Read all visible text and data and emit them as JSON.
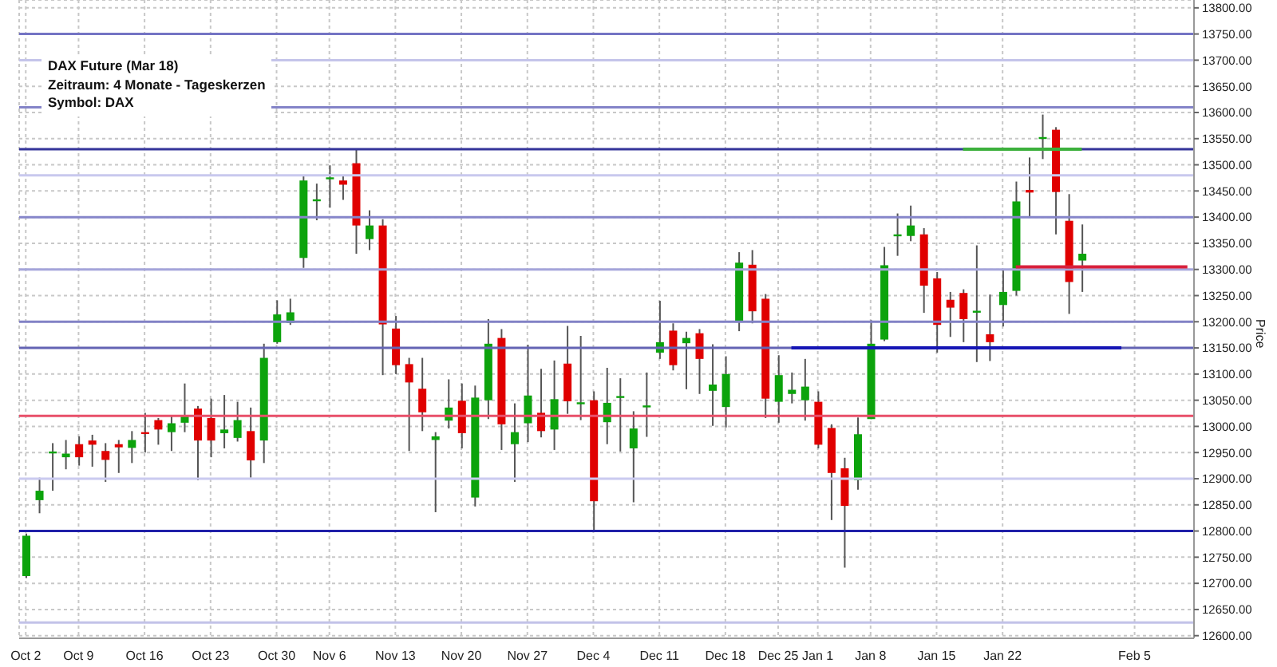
{
  "chart_data": {
    "type": "candlestick",
    "annotations": [
      "DAX Future (Mar 18)",
      "Zeitraum: 4 Monate - Tageskerzen",
      "Symbol: DAX"
    ],
    "ylabel": "Price",
    "categories": [
      "Oct 2",
      null,
      null,
      null,
      "Oct 9",
      null,
      null,
      null,
      null,
      "Oct 16",
      null,
      null,
      null,
      null,
      "Oct 23",
      null,
      null,
      null,
      null,
      "Oct 30",
      null,
      null,
      null,
      "Nov 6",
      null,
      null,
      null,
      null,
      "Nov 13",
      null,
      null,
      null,
      null,
      "Nov 20",
      null,
      null,
      null,
      null,
      "Nov 27",
      null,
      null,
      null,
      null,
      "Dec 4",
      null,
      null,
      null,
      null,
      "Dec 11",
      null,
      null,
      null,
      null,
      "Dec 18",
      null,
      null,
      null,
      "Dec 25",
      null,
      null,
      "Jan 1",
      null,
      null,
      null,
      "Jan 8",
      null,
      null,
      null,
      null,
      "Jan 15",
      null,
      null,
      null,
      null,
      "Jan 22",
      null,
      null,
      null,
      null,
      null,
      null,
      null,
      null,
      null,
      "Feb 5",
      null,
      null,
      null,
      null
    ],
    "ohlc": [
      [
        12714,
        12795,
        12710,
        12791
      ],
      [
        12859,
        12902,
        12834,
        12877
      ],
      [
        12950,
        12968,
        12877,
        12952
      ],
      [
        12941,
        12974,
        12918,
        12948
      ],
      [
        12966,
        12981,
        12925,
        12941
      ],
      [
        12973,
        12984,
        12923,
        12965
      ],
      [
        12953,
        12968,
        12894,
        12936
      ],
      [
        12966,
        12974,
        12911,
        12960
      ],
      [
        12959,
        12991,
        12930,
        12974
      ],
      [
        12989,
        13026,
        12950,
        12986
      ],
      [
        13012,
        13016,
        12965,
        12994
      ],
      [
        12989,
        13019,
        12953,
        13006
      ],
      [
        13007,
        13082,
        12989,
        13022
      ],
      [
        13034,
        13039,
        12897,
        12973
      ],
      [
        13016,
        13053,
        12941,
        12973
      ],
      [
        12987,
        13060,
        12958,
        12994
      ],
      [
        12978,
        13047,
        12971,
        13012
      ],
      [
        12991,
        13036,
        12902,
        12935
      ],
      [
        12973,
        13158,
        12930,
        13131
      ],
      [
        13161,
        13241,
        13158,
        13214
      ],
      [
        13198,
        13244,
        13194,
        13218
      ],
      [
        13322,
        13481,
        13303,
        13470
      ],
      [
        13432,
        13464,
        13394,
        13434
      ],
      [
        13474,
        13499,
        13418,
        13476
      ],
      [
        13470,
        13478,
        13433,
        13462
      ],
      [
        13503,
        13529,
        13330,
        13384
      ],
      [
        13358,
        13413,
        13337,
        13384
      ],
      [
        13384,
        13396,
        13098,
        13195
      ],
      [
        13187,
        13211,
        13100,
        13117
      ],
      [
        13119,
        13131,
        12953,
        13084
      ],
      [
        13072,
        13131,
        12991,
        13027
      ],
      [
        12974,
        12989,
        12836,
        12981
      ],
      [
        13011,
        13090,
        12996,
        13036
      ],
      [
        13049,
        13082,
        12958,
        12987
      ],
      [
        12864,
        13078,
        12847,
        13055
      ],
      [
        13050,
        13205,
        13014,
        13158
      ],
      [
        13169,
        13186,
        12955,
        13004
      ],
      [
        12966,
        13044,
        12894,
        12989
      ],
      [
        13006,
        13156,
        12970,
        13059
      ],
      [
        13026,
        13110,
        12979,
        12991
      ],
      [
        12994,
        13126,
        12955,
        13052
      ],
      [
        13120,
        13192,
        13024,
        13048
      ],
      [
        13044,
        13173,
        13012,
        13046
      ],
      [
        13050,
        13067,
        12801,
        12857
      ],
      [
        13008,
        13112,
        12966,
        13045
      ],
      [
        13056,
        13092,
        12952,
        13058
      ],
      [
        12958,
        13029,
        12855,
        12996
      ],
      [
        13038,
        13103,
        12980,
        13040
      ],
      [
        13141,
        13240,
        13129,
        13161
      ],
      [
        13183,
        13197,
        13107,
        13117
      ],
      [
        13159,
        13181,
        13071,
        13169
      ],
      [
        13178,
        13186,
        13062,
        13129
      ],
      [
        13068,
        13157,
        13001,
        13080
      ],
      [
        13037,
        13134,
        12998,
        13100
      ],
      [
        13199,
        13333,
        13182,
        13313
      ],
      [
        13309,
        13337,
        13197,
        13220
      ],
      [
        13244,
        13253,
        13016,
        13053
      ],
      [
        13047,
        13136,
        13007,
        13098
      ],
      [
        13062,
        13103,
        13044,
        13070
      ],
      [
        13050,
        13129,
        13011,
        13076
      ],
      [
        13047,
        13067,
        12958,
        12965
      ],
      [
        12997,
        13004,
        12821,
        12911
      ],
      [
        12920,
        12940,
        12730,
        12848
      ],
      [
        12897,
        13017,
        12879,
        12985
      ],
      [
        13014,
        13203,
        13014,
        13158
      ],
      [
        13166,
        13343,
        13163,
        13308
      ],
      [
        13365,
        13407,
        13326,
        13367
      ],
      [
        13364,
        13422,
        13354,
        13384
      ],
      [
        13367,
        13379,
        13217,
        13269
      ],
      [
        13283,
        13295,
        13141,
        13194
      ],
      [
        13242,
        13257,
        13171,
        13227
      ],
      [
        13255,
        13262,
        13161,
        13205
      ],
      [
        13219,
        13346,
        13123,
        13221
      ],
      [
        13176,
        13252,
        13125,
        13161
      ],
      [
        13232,
        13301,
        13191,
        13257
      ],
      [
        13259,
        13468,
        13250,
        13430
      ],
      [
        13452,
        13514,
        13401,
        13447
      ],
      [
        13551,
        13596,
        13511,
        13553
      ],
      [
        13567,
        13572,
        13367,
        13448
      ],
      [
        13393,
        13444,
        13215,
        13276
      ],
      [
        13317,
        13386,
        13257,
        13330
      ],
      null,
      null,
      null,
      null,
      null,
      null,
      null,
      null
    ],
    "colors": [
      "#0ca30c",
      "#0ca30c",
      "#0ca30c",
      "#0ca30c",
      "#e00000",
      "#e00000",
      "#e00000",
      "#e00000",
      "#0ca30c",
      "#e00000",
      "#e00000",
      "#0ca30c",
      "#0ca30c",
      "#e00000",
      "#e00000",
      "#0ca30c",
      "#0ca30c",
      "#e00000",
      "#0ca30c",
      "#0ca30c",
      "#0ca30c",
      "#0ca30c",
      "#0ca30c",
      "#0ca30c",
      "#e00000",
      "#e00000",
      "#0ca30c",
      "#e00000",
      "#e00000",
      "#e00000",
      "#e00000",
      "#0ca30c",
      "#0ca30c",
      "#e00000",
      "#0ca30c",
      "#0ca30c",
      "#e00000",
      "#0ca30c",
      "#0ca30c",
      "#e00000",
      "#0ca30c",
      "#e00000",
      "#0ca30c",
      "#e00000",
      "#0ca30c",
      "#0ca30c",
      "#0ca30c",
      "#0ca30c",
      "#0ca30c",
      "#e00000",
      "#0ca30c",
      "#e00000",
      "#0ca30c",
      "#0ca30c",
      "#0ca30c",
      "#e00000",
      "#e00000",
      "#0ca30c",
      "#0ca30c",
      "#0ca30c",
      "#e00000",
      "#e00000",
      "#e00000",
      "#0ca30c",
      "#0ca30c",
      "#0ca30c",
      "#0ca30c",
      "#0ca30c",
      "#e00000",
      "#e00000",
      "#e00000",
      "#e00000",
      "#0ca30c",
      "#e00000",
      "#0ca30c",
      "#0ca30c",
      "#e00000",
      "#0ca30c",
      "#e00000",
      "#e00000",
      "#0ca30c",
      null,
      null,
      null,
      null,
      null,
      null,
      null,
      null
    ],
    "series": [
      {
        "type": "line",
        "color": "#3cb03c",
        "values": [
          null,
          null,
          null,
          null,
          null,
          null,
          null,
          null,
          null,
          null,
          null,
          null,
          null,
          null,
          null,
          null,
          null,
          null,
          null,
          null,
          null,
          null,
          null,
          null,
          null,
          null,
          null,
          null,
          null,
          null,
          null,
          null,
          null,
          null,
          null,
          null,
          null,
          null,
          null,
          null,
          null,
          null,
          null,
          null,
          null,
          null,
          null,
          null,
          null,
          null,
          null,
          null,
          null,
          null,
          null,
          null,
          null,
          null,
          null,
          null,
          null,
          null,
          null,
          null,
          null,
          null,
          null,
          null,
          null,
          null,
          null,
          13530,
          13530,
          13530,
          13530,
          13530,
          13530,
          13530,
          13530,
          13530,
          13530,
          null,
          null,
          null,
          null,
          null,
          null,
          null,
          null
        ]
      },
      {
        "type": "line",
        "color": "#d8203c",
        "values": [
          null,
          null,
          null,
          null,
          null,
          null,
          null,
          null,
          null,
          null,
          null,
          null,
          null,
          null,
          null,
          null,
          null,
          null,
          null,
          null,
          null,
          null,
          null,
          null,
          null,
          null,
          null,
          null,
          null,
          null,
          null,
          null,
          null,
          null,
          null,
          null,
          null,
          null,
          null,
          null,
          null,
          null,
          null,
          null,
          null,
          null,
          null,
          null,
          null,
          null,
          null,
          null,
          null,
          null,
          null,
          null,
          null,
          null,
          null,
          null,
          null,
          null,
          null,
          null,
          null,
          null,
          null,
          null,
          null,
          null,
          null,
          null,
          null,
          null,
          null,
          13305,
          13305,
          13305,
          13305,
          13305,
          13305,
          13305,
          13305,
          13305,
          13305,
          13305,
          13305,
          13305,
          13305
        ]
      },
      {
        "type": "line",
        "color": "#1515b5",
        "values": [
          null,
          null,
          null,
          null,
          null,
          null,
          null,
          null,
          null,
          null,
          null,
          null,
          null,
          null,
          null,
          null,
          null,
          null,
          null,
          null,
          null,
          null,
          null,
          null,
          null,
          null,
          null,
          null,
          null,
          null,
          null,
          null,
          null,
          null,
          null,
          null,
          null,
          null,
          null,
          null,
          null,
          null,
          null,
          null,
          null,
          null,
          null,
          null,
          null,
          null,
          null,
          null,
          null,
          null,
          null,
          null,
          null,
          null,
          13150,
          13150,
          13150,
          13150,
          13150,
          13150,
          13150,
          13150,
          13150,
          13150,
          13150,
          13150,
          13150,
          13150,
          13150,
          13150,
          13150,
          13150,
          13150,
          13150,
          13150,
          13150,
          13150,
          13150,
          13150,
          13150,
          null,
          null,
          null,
          null,
          null
        ]
      }
    ],
    "ref_lines": [
      {
        "axis": "y",
        "value": 13750,
        "color": "#7474c4"
      },
      {
        "axis": "y",
        "value": 13700,
        "color": "#c4c4ea"
      },
      {
        "axis": "y",
        "value": 13610,
        "color": "#8484c8"
      },
      {
        "axis": "y",
        "value": 13530,
        "color": "#34349a"
      },
      {
        "axis": "y",
        "value": 13480,
        "color": "#c8c8ee"
      },
      {
        "axis": "y",
        "value": 13400,
        "color": "#8686ca"
      },
      {
        "axis": "y",
        "value": 13300,
        "color": "#a4a4da"
      },
      {
        "axis": "y",
        "value": 13200,
        "color": "#8282c6"
      },
      {
        "axis": "y",
        "value": 13150,
        "color": "#6464b4"
      },
      {
        "axis": "y",
        "value": 13020,
        "color": "#e8506a"
      },
      {
        "axis": "y",
        "value": 12900,
        "color": "#cacaf0"
      },
      {
        "axis": "y",
        "value": 12800,
        "color": "#2020a8"
      },
      {
        "axis": "y",
        "value": 12625,
        "color": "#c2c2e8"
      }
    ],
    "ylim": [
      12595,
      13815
    ],
    "yticks": [
      {
        "value": 12600,
        "label": "12600.00"
      },
      {
        "value": 12650,
        "label": "12650.00"
      },
      {
        "value": 12700,
        "label": "12700.00"
      },
      {
        "value": 12750,
        "label": "12750.00"
      },
      {
        "value": 12800,
        "label": "12800.00"
      },
      {
        "value": 12850,
        "label": "12850.00"
      },
      {
        "value": 12900,
        "label": "12900.00"
      },
      {
        "value": 12950,
        "label": "12950.00"
      },
      {
        "value": 13000,
        "label": "13000.00"
      },
      {
        "value": 13050,
        "label": "13050.00"
      },
      {
        "value": 13100,
        "label": "13100.00"
      },
      {
        "value": 13150,
        "label": "13150.00"
      },
      {
        "value": 13200,
        "label": "13200.00"
      },
      {
        "value": 13250,
        "label": "13250.00"
      },
      {
        "value": 13300,
        "label": "13300.00"
      },
      {
        "value": 13350,
        "label": "13350.00"
      },
      {
        "value": 13400,
        "label": "13400.00"
      },
      {
        "value": 13450,
        "label": "13450.00"
      },
      {
        "value": 13500,
        "label": "13500.00"
      },
      {
        "value": 13550,
        "label": "13550.00"
      },
      {
        "value": 13600,
        "label": "13600.00"
      },
      {
        "value": 13650,
        "label": "13650.00"
      },
      {
        "value": 13700,
        "label": "13700.00"
      },
      {
        "value": 13750,
        "label": "13750.00"
      },
      {
        "value": 13800,
        "label": "13800.00"
      }
    ],
    "grid": true
  }
}
